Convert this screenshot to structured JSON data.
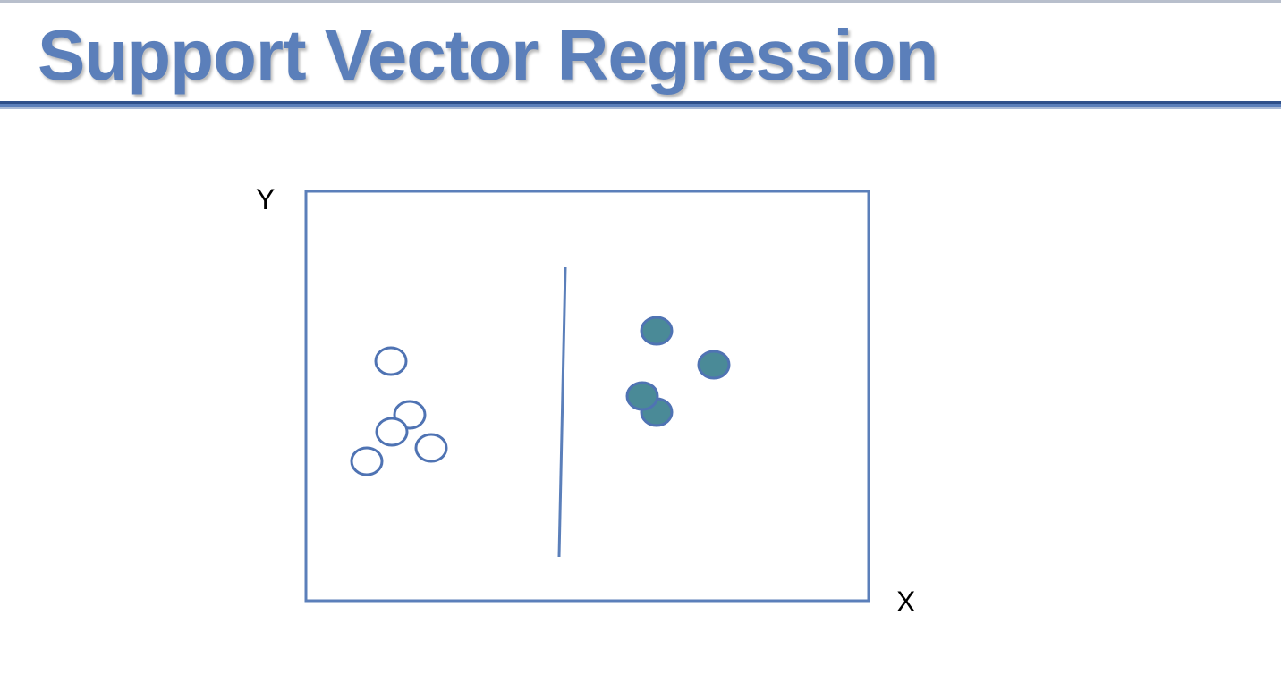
{
  "slide": {
    "title": "Support Vector Regression"
  },
  "diagram": {
    "y_axis_label": "Y",
    "x_axis_label": "X",
    "colors": {
      "title": "#5b7fba",
      "frame": "#5b7fba",
      "hollow_point_stroke": "#4f73b3",
      "filled_point_fill": "#4a8a97",
      "filled_point_stroke": "#4f73b3",
      "separator": "#5b7fba"
    },
    "point_groups": [
      {
        "name": "hollow-points",
        "style": "hollow",
        "count": 5
      },
      {
        "name": "filled-points",
        "style": "filled",
        "count": 4
      }
    ]
  }
}
